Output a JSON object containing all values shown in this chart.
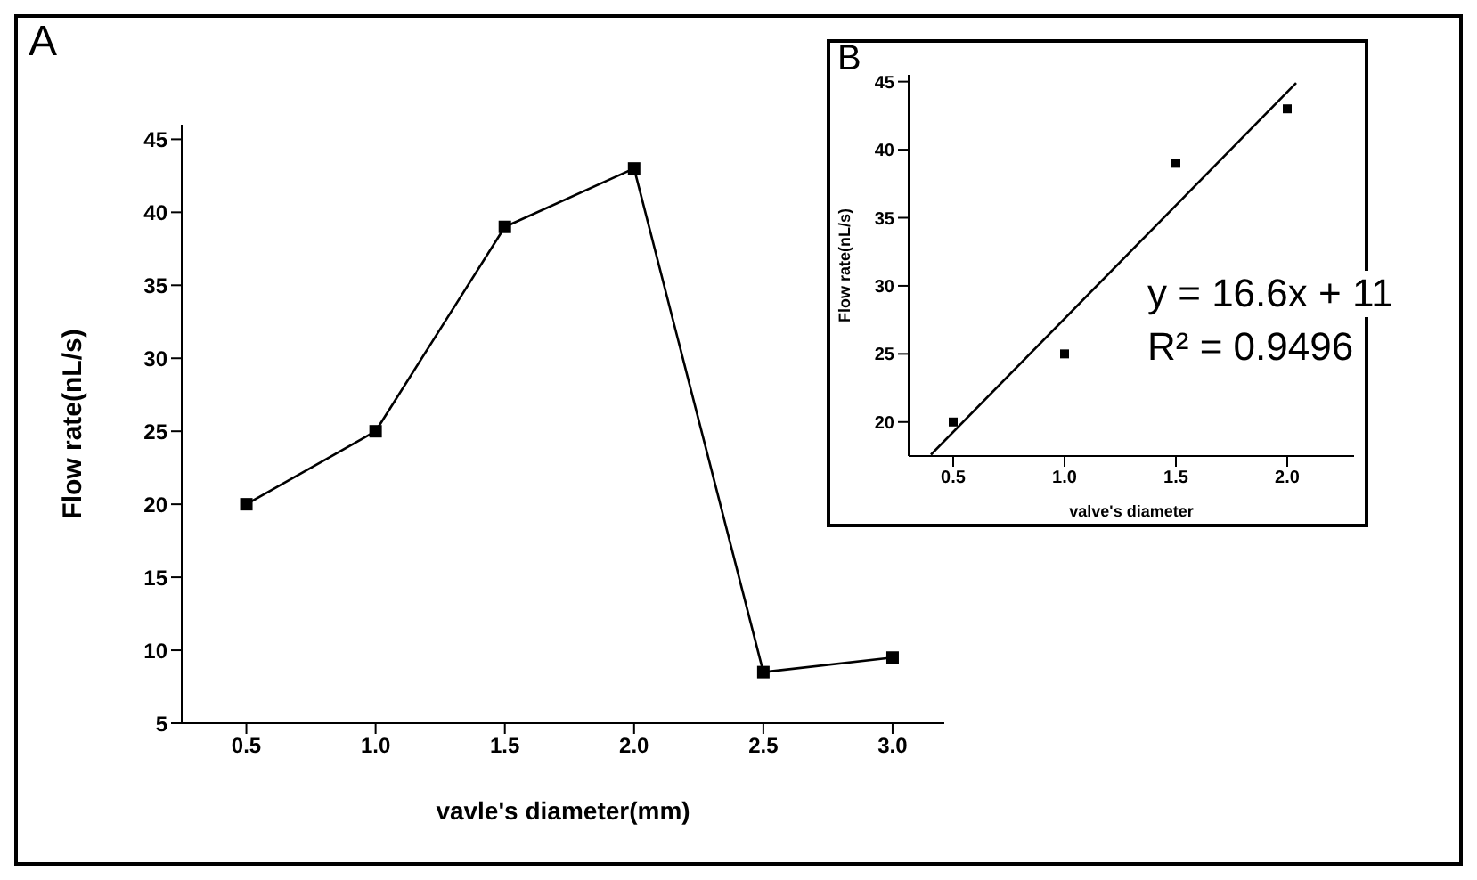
{
  "chart_data": [
    {
      "type": "line",
      "title": "A",
      "xlabel": "vavle's diameter(mm)",
      "ylabel": "Flow rate(nL/s)",
      "x": [
        0.5,
        1.0,
        1.5,
        2.0,
        2.5,
        3.0
      ],
      "series": [
        {
          "color": "#000000",
          "values": [
            20,
            25,
            39,
            43,
            8.5,
            9.5
          ]
        }
      ],
      "xlim": [
        0.25,
        3.2
      ],
      "ylim": [
        5,
        46
      ],
      "xticks": [
        {
          "value": 0.5,
          "label": "0.5"
        },
        {
          "value": 1,
          "label": "1.0"
        },
        {
          "value": 1.5,
          "label": "1.5"
        },
        {
          "value": 2,
          "label": "2.0"
        },
        {
          "value": 2.5,
          "label": "2.5"
        },
        {
          "value": 3,
          "label": "3.0"
        }
      ],
      "yticks": [
        5,
        10,
        15,
        20,
        25,
        30,
        35,
        40,
        45
      ],
      "marker": "square",
      "line_style": "solid"
    },
    {
      "type": "scatter",
      "title": "B",
      "xlabel": "valve's diameter",
      "ylabel": "Flow rate(nL/s)",
      "series": [
        {
          "color": "#000000",
          "marker": "square",
          "x": [
            0.5,
            1.0,
            1.5,
            2.0
          ],
          "values": [
            20,
            25,
            39,
            43
          ]
        },
        {
          "type": "line",
          "color": "#000000",
          "marker": "none",
          "x": [
            0.4,
            2.04
          ],
          "values": [
            17.6,
            44.9
          ]
        }
      ],
      "xlim": [
        0.3,
        2.3
      ],
      "ylim": [
        17.5,
        45.5
      ],
      "xticks": [
        {
          "value": 0.5,
          "label": "0.5"
        },
        {
          "value": 1,
          "label": "1.0"
        },
        {
          "value": 1.5,
          "label": "1.5"
        },
        {
          "value": 2,
          "label": "2.0"
        }
      ],
      "yticks": [
        20,
        25,
        30,
        35,
        40,
        45
      ],
      "annotations": [
        "y = 16.6x + 11",
        "R² = 0.9496"
      ]
    }
  ]
}
